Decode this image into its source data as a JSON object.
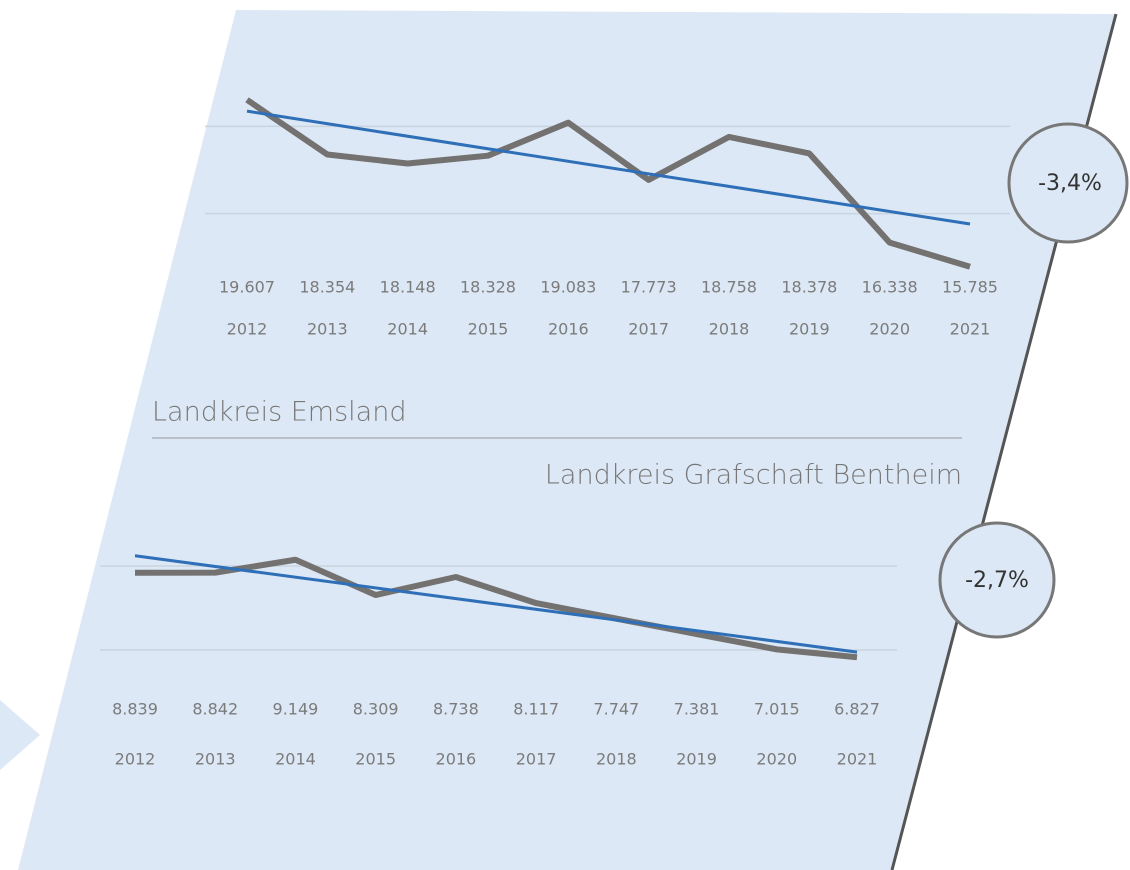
{
  "chart_data": [
    {
      "type": "line",
      "title": "Landkreis Emsland",
      "categories": [
        "2012",
        "2013",
        "2014",
        "2015",
        "2016",
        "2017",
        "2018",
        "2019",
        "2020",
        "2021"
      ],
      "values": [
        19607,
        18354,
        18148,
        18328,
        19083,
        17773,
        18758,
        18378,
        16338,
        15785
      ],
      "value_labels": [
        "19.607",
        "18.354",
        "18.148",
        "18.328",
        "19.083",
        "17.773",
        "18.758",
        "18.378",
        "16.338",
        "15.785"
      ],
      "color": "#747171",
      "trend_color": "#2e6fb8",
      "ylim": [
        15000,
        21000
      ],
      "yticks": [
        17000,
        19000
      ],
      "grid": true,
      "annotation": "-3,4%"
    },
    {
      "type": "line",
      "title": "Landkreis Grafschaft Bentheim",
      "categories": [
        "2012",
        "2013",
        "2014",
        "2015",
        "2016",
        "2017",
        "2018",
        "2019",
        "2020",
        "2021"
      ],
      "values": [
        8839,
        8842,
        9149,
        8309,
        8738,
        8117,
        7747,
        7381,
        7015,
        6827
      ],
      "value_labels": [
        "8.839",
        "8.842",
        "9.149",
        "8.309",
        "8.738",
        "8.117",
        "7.747",
        "7.381",
        "7.015",
        "6.827"
      ],
      "color": "#747171",
      "trend_color": "#2e6fb8",
      "ylim": [
        6000,
        10000
      ],
      "yticks": [
        7000,
        9000
      ],
      "grid": true,
      "annotation": "-2,7%"
    }
  ]
}
